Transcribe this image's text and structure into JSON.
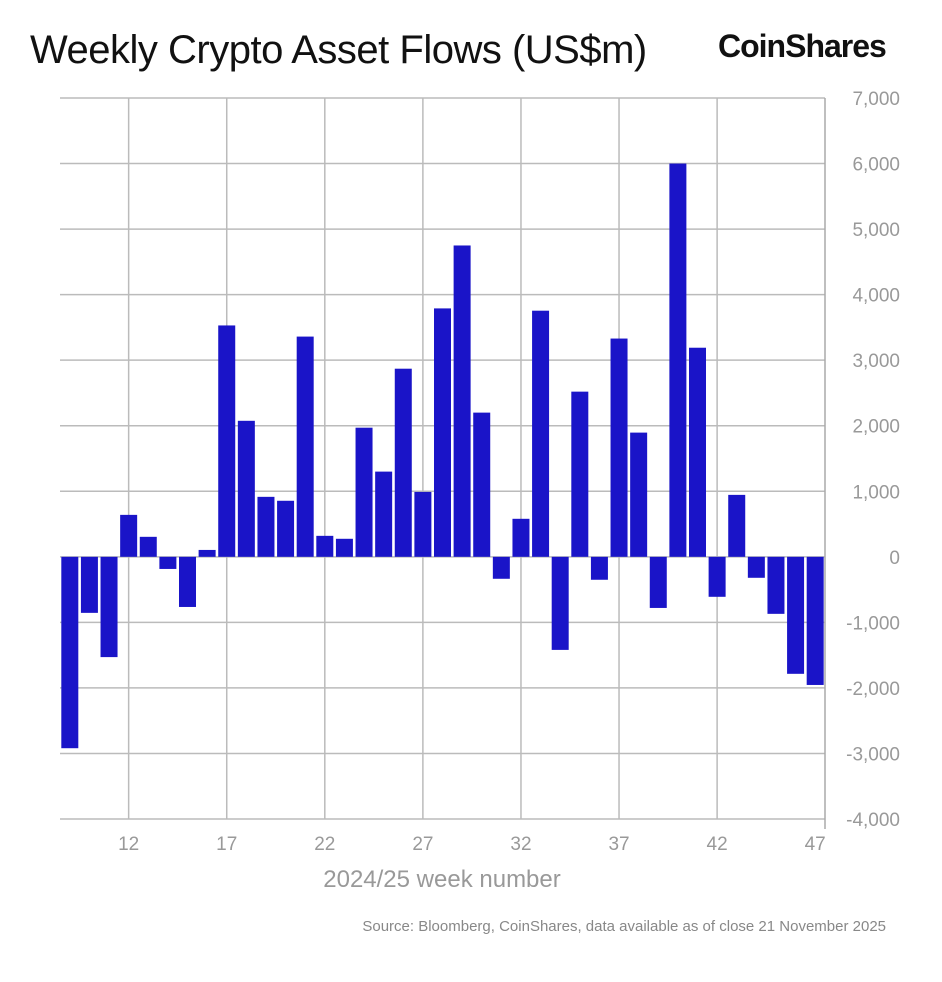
{
  "title": "Weekly Crypto Asset Flows (US$m)",
  "logo": "CoinShares",
  "source": "Source: Bloomberg, CoinShares, data available as of close 21 November 2025",
  "chart_data": {
    "type": "bar",
    "title": "Weekly Crypto Asset Flows (US$m)",
    "xlabel": "2024/25 week number",
    "ylabel": "",
    "ylim": [
      -4000,
      7000
    ],
    "yticks": [
      7000,
      6000,
      5000,
      4000,
      3000,
      2000,
      1000,
      0,
      -1000,
      -2000,
      -3000,
      -4000
    ],
    "ytick_labels": [
      "7,000",
      "6,000",
      "5,000",
      "4,000",
      "3,000",
      "2,000",
      "1,000",
      "0",
      "-1,000",
      "-2,000",
      "-3,000",
      "-4,000"
    ],
    "xticks": [
      12,
      17,
      22,
      27,
      32,
      37,
      42,
      47
    ],
    "grid": true,
    "bar_color": "#1a14c8",
    "categories": [
      9,
      10,
      11,
      12,
      13,
      14,
      15,
      16,
      17,
      18,
      19,
      20,
      21,
      22,
      23,
      24,
      25,
      26,
      27,
      28,
      29,
      30,
      31,
      32,
      33,
      34,
      35,
      36,
      37,
      38,
      39,
      40,
      41,
      42,
      43,
      44,
      45,
      46,
      47
    ],
    "values": [
      -2920,
      -855,
      -1530,
      640,
      305,
      -185,
      -765,
      105,
      3530,
      2075,
      915,
      855,
      3360,
      320,
      275,
      1970,
      1300,
      2870,
      990,
      3790,
      4750,
      2200,
      -335,
      580,
      3755,
      -1420,
      2520,
      -350,
      3330,
      1895,
      -780,
      6000,
      3190,
      -610,
      945,
      -320,
      -870,
      -1785,
      -1955
    ]
  }
}
